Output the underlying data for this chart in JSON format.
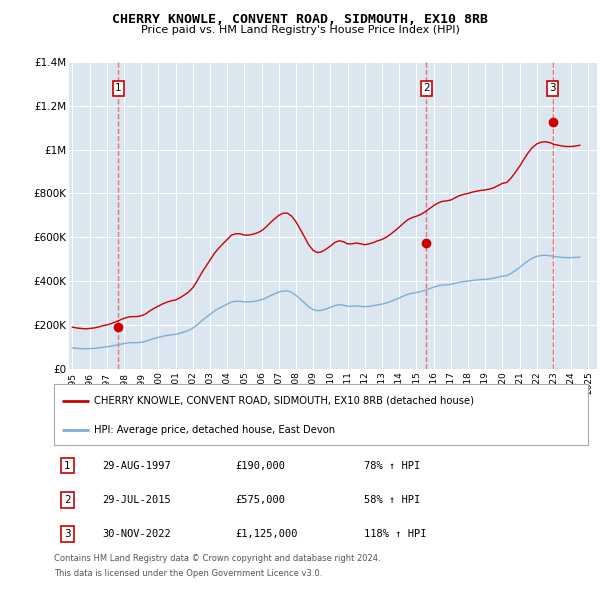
{
  "title": "CHERRY KNOWLE, CONVENT ROAD, SIDMOUTH, EX10 8RB",
  "subtitle": "Price paid vs. HM Land Registry's House Price Index (HPI)",
  "legend_line1": "CHERRY KNOWLE, CONVENT ROAD, SIDMOUTH, EX10 8RB (detached house)",
  "legend_line2": "HPI: Average price, detached house, East Devon",
  "footnote1": "Contains HM Land Registry data © Crown copyright and database right 2024.",
  "footnote2": "This data is licensed under the Open Government Licence v3.0.",
  "bg_color": "#dce6f1",
  "red_line_color": "#cc0000",
  "blue_line_color": "#7bafd4",
  "sale_marker_color": "#cc0000",
  "dashed_line_color": "#e87070",
  "grid_color": "#ffffff",
  "table_border_color": "#cc0000",
  "ylim": [
    0,
    1400000
  ],
  "yticks": [
    0,
    200000,
    400000,
    600000,
    800000,
    1000000,
    1200000,
    1400000
  ],
  "ytick_labels": [
    "£0",
    "£200K",
    "£400K",
    "£600K",
    "£800K",
    "£1M",
    "£1.2M",
    "£1.4M"
  ],
  "xlim_start": 1994.8,
  "xlim_end": 2025.5,
  "xtick_years": [
    1995,
    1996,
    1997,
    1998,
    1999,
    2000,
    2001,
    2002,
    2003,
    2004,
    2005,
    2006,
    2007,
    2008,
    2009,
    2010,
    2011,
    2012,
    2013,
    2014,
    2015,
    2016,
    2017,
    2018,
    2019,
    2020,
    2021,
    2022,
    2023,
    2024,
    2025
  ],
  "sale_events": [
    {
      "num": 1,
      "year": 1997.66,
      "price": 190000,
      "date": "29-AUG-1997",
      "price_str": "£190,000",
      "pct": "78%",
      "dir": "↑"
    },
    {
      "num": 2,
      "year": 2015.58,
      "price": 575000,
      "date": "29-JUL-2015",
      "price_str": "£575,000",
      "pct": "58%",
      "dir": "↑"
    },
    {
      "num": 3,
      "year": 2022.92,
      "price": 1125000,
      "date": "30-NOV-2022",
      "price_str": "£1,125,000",
      "pct": "118%",
      "dir": "↑"
    }
  ],
  "hpi_data_years": [
    1995.0,
    1995.25,
    1995.5,
    1995.75,
    1996.0,
    1996.25,
    1996.5,
    1996.75,
    1997.0,
    1997.25,
    1997.5,
    1997.75,
    1998.0,
    1998.25,
    1998.5,
    1998.75,
    1999.0,
    1999.25,
    1999.5,
    1999.75,
    2000.0,
    2000.25,
    2000.5,
    2000.75,
    2001.0,
    2001.25,
    2001.5,
    2001.75,
    2002.0,
    2002.25,
    2002.5,
    2002.75,
    2003.0,
    2003.25,
    2003.5,
    2003.75,
    2004.0,
    2004.25,
    2004.5,
    2004.75,
    2005.0,
    2005.25,
    2005.5,
    2005.75,
    2006.0,
    2006.25,
    2006.5,
    2006.75,
    2007.0,
    2007.25,
    2007.5,
    2007.75,
    2008.0,
    2008.25,
    2008.5,
    2008.75,
    2009.0,
    2009.25,
    2009.5,
    2009.75,
    2010.0,
    2010.25,
    2010.5,
    2010.75,
    2011.0,
    2011.25,
    2011.5,
    2011.75,
    2012.0,
    2012.25,
    2012.5,
    2012.75,
    2013.0,
    2013.25,
    2013.5,
    2013.75,
    2014.0,
    2014.25,
    2014.5,
    2014.75,
    2015.0,
    2015.25,
    2015.5,
    2015.75,
    2016.0,
    2016.25,
    2016.5,
    2016.75,
    2017.0,
    2017.25,
    2017.5,
    2017.75,
    2018.0,
    2018.25,
    2018.5,
    2018.75,
    2019.0,
    2019.25,
    2019.5,
    2019.75,
    2020.0,
    2020.25,
    2020.5,
    2020.75,
    2021.0,
    2021.25,
    2021.5,
    2021.75,
    2022.0,
    2022.25,
    2022.5,
    2022.75,
    2023.0,
    2023.25,
    2023.5,
    2023.75,
    2024.0,
    2024.25,
    2024.5
  ],
  "hpi_data_values": [
    95000,
    93000,
    92000,
    91000,
    92000,
    93000,
    95000,
    98000,
    100000,
    103000,
    107000,
    111000,
    115000,
    118000,
    119000,
    119000,
    121000,
    125000,
    132000,
    138000,
    143000,
    148000,
    152000,
    155000,
    157000,
    162000,
    168000,
    175000,
    185000,
    200000,
    218000,
    233000,
    248000,
    263000,
    275000,
    285000,
    295000,
    305000,
    308000,
    308000,
    305000,
    305000,
    307000,
    310000,
    315000,
    323000,
    333000,
    342000,
    350000,
    355000,
    355000,
    348000,
    335000,
    318000,
    300000,
    282000,
    270000,
    265000,
    267000,
    273000,
    280000,
    288000,
    292000,
    290000,
    285000,
    285000,
    287000,
    285000,
    283000,
    285000,
    288000,
    292000,
    295000,
    300000,
    307000,
    315000,
    323000,
    332000,
    340000,
    345000,
    348000,
    352000,
    358000,
    365000,
    372000,
    378000,
    382000,
    383000,
    385000,
    390000,
    395000,
    398000,
    400000,
    403000,
    405000,
    407000,
    408000,
    410000,
    413000,
    418000,
    423000,
    425000,
    435000,
    448000,
    462000,
    478000,
    493000,
    505000,
    513000,
    517000,
    518000,
    516000,
    512000,
    510000,
    508000,
    507000,
    507000,
    508000,
    510000
  ],
  "red_data_years": [
    1995.0,
    1995.25,
    1995.5,
    1995.75,
    1996.0,
    1996.25,
    1996.5,
    1996.75,
    1997.0,
    1997.25,
    1997.5,
    1997.75,
    1998.0,
    1998.25,
    1998.5,
    1998.75,
    1999.0,
    1999.25,
    1999.5,
    1999.75,
    2000.0,
    2000.25,
    2000.5,
    2000.75,
    2001.0,
    2001.25,
    2001.5,
    2001.75,
    2002.0,
    2002.25,
    2002.5,
    2002.75,
    2003.0,
    2003.25,
    2003.5,
    2003.75,
    2004.0,
    2004.25,
    2004.5,
    2004.75,
    2005.0,
    2005.25,
    2005.5,
    2005.75,
    2006.0,
    2006.25,
    2006.5,
    2006.75,
    2007.0,
    2007.25,
    2007.5,
    2007.75,
    2008.0,
    2008.25,
    2008.5,
    2008.75,
    2009.0,
    2009.25,
    2009.5,
    2009.75,
    2010.0,
    2010.25,
    2010.5,
    2010.75,
    2011.0,
    2011.25,
    2011.5,
    2011.75,
    2012.0,
    2012.25,
    2012.5,
    2012.75,
    2013.0,
    2013.25,
    2013.5,
    2013.75,
    2014.0,
    2014.25,
    2014.5,
    2014.75,
    2015.0,
    2015.25,
    2015.5,
    2015.75,
    2016.0,
    2016.25,
    2016.5,
    2016.75,
    2017.0,
    2017.25,
    2017.5,
    2017.75,
    2018.0,
    2018.25,
    2018.5,
    2018.75,
    2019.0,
    2019.25,
    2019.5,
    2019.75,
    2020.0,
    2020.25,
    2020.5,
    2020.75,
    2021.0,
    2021.25,
    2021.5,
    2021.75,
    2022.0,
    2022.25,
    2022.5,
    2022.75,
    2023.0,
    2023.25,
    2023.5,
    2023.75,
    2024.0,
    2024.25,
    2024.5
  ],
  "red_data_values": [
    190000,
    186000,
    184000,
    182000,
    184000,
    186000,
    190000,
    196000,
    200000,
    206000,
    214000,
    222000,
    230000,
    236000,
    238000,
    238000,
    242000,
    250000,
    264000,
    276000,
    286000,
    296000,
    304000,
    310000,
    314000,
    324000,
    336000,
    350000,
    370000,
    400000,
    436000,
    466000,
    496000,
    526000,
    550000,
    570000,
    590000,
    610000,
    616000,
    616000,
    610000,
    610000,
    614000,
    620000,
    630000,
    646000,
    666000,
    684000,
    700000,
    710000,
    710000,
    696000,
    670000,
    636000,
    600000,
    564000,
    540000,
    530000,
    534000,
    546000,
    560000,
    576000,
    584000,
    580000,
    570000,
    570000,
    574000,
    570000,
    566000,
    570000,
    576000,
    584000,
    590000,
    600000,
    614000,
    630000,
    646000,
    664000,
    680000,
    690000,
    696000,
    704000,
    716000,
    730000,
    744000,
    756000,
    764000,
    766000,
    770000,
    780000,
    790000,
    796000,
    800000,
    806000,
    810000,
    814000,
    816000,
    820000,
    826000,
    836000,
    846000,
    850000,
    870000,
    896000,
    924000,
    956000,
    986000,
    1010000,
    1026000,
    1034000,
    1036000,
    1032000,
    1024000,
    1020000,
    1016000,
    1014000,
    1014000,
    1016000,
    1020000
  ]
}
